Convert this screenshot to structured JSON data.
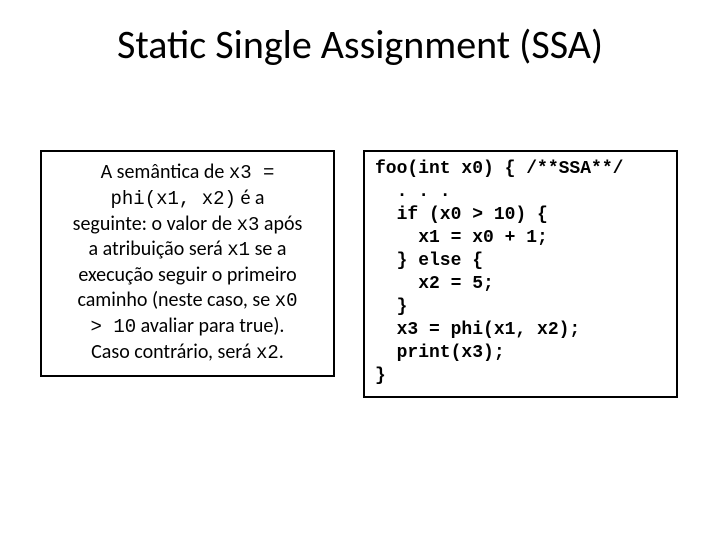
{
  "title": "Static Single Assignment (SSA)",
  "left": {
    "t1": "A semântica de ",
    "m1": "x3 =",
    "m2": "phi(x1, x2)",
    "t2": " é a",
    "t3": "seguinte: o valor de ",
    "m3": "x3",
    "t4": " após",
    "t5": "a atribuição será ",
    "m4": "x1",
    "t6": " se a",
    "t7": "execução seguir o primeiro",
    "t8": "caminho (neste caso, se ",
    "m5": "x0",
    "m6": "> 10",
    "t9": " avaliar para true).",
    "t10": "Caso contrário, será ",
    "m7": "x2",
    "t11": "."
  },
  "code": "foo(int x0) { /**SSA**/\n  . . .\n  if (x0 > 10) {\n    x1 = x0 + 1;\n  } else {\n    x2 = 5;\n  }\n  x3 = phi(x1, x2);\n  print(x3);\n}"
}
